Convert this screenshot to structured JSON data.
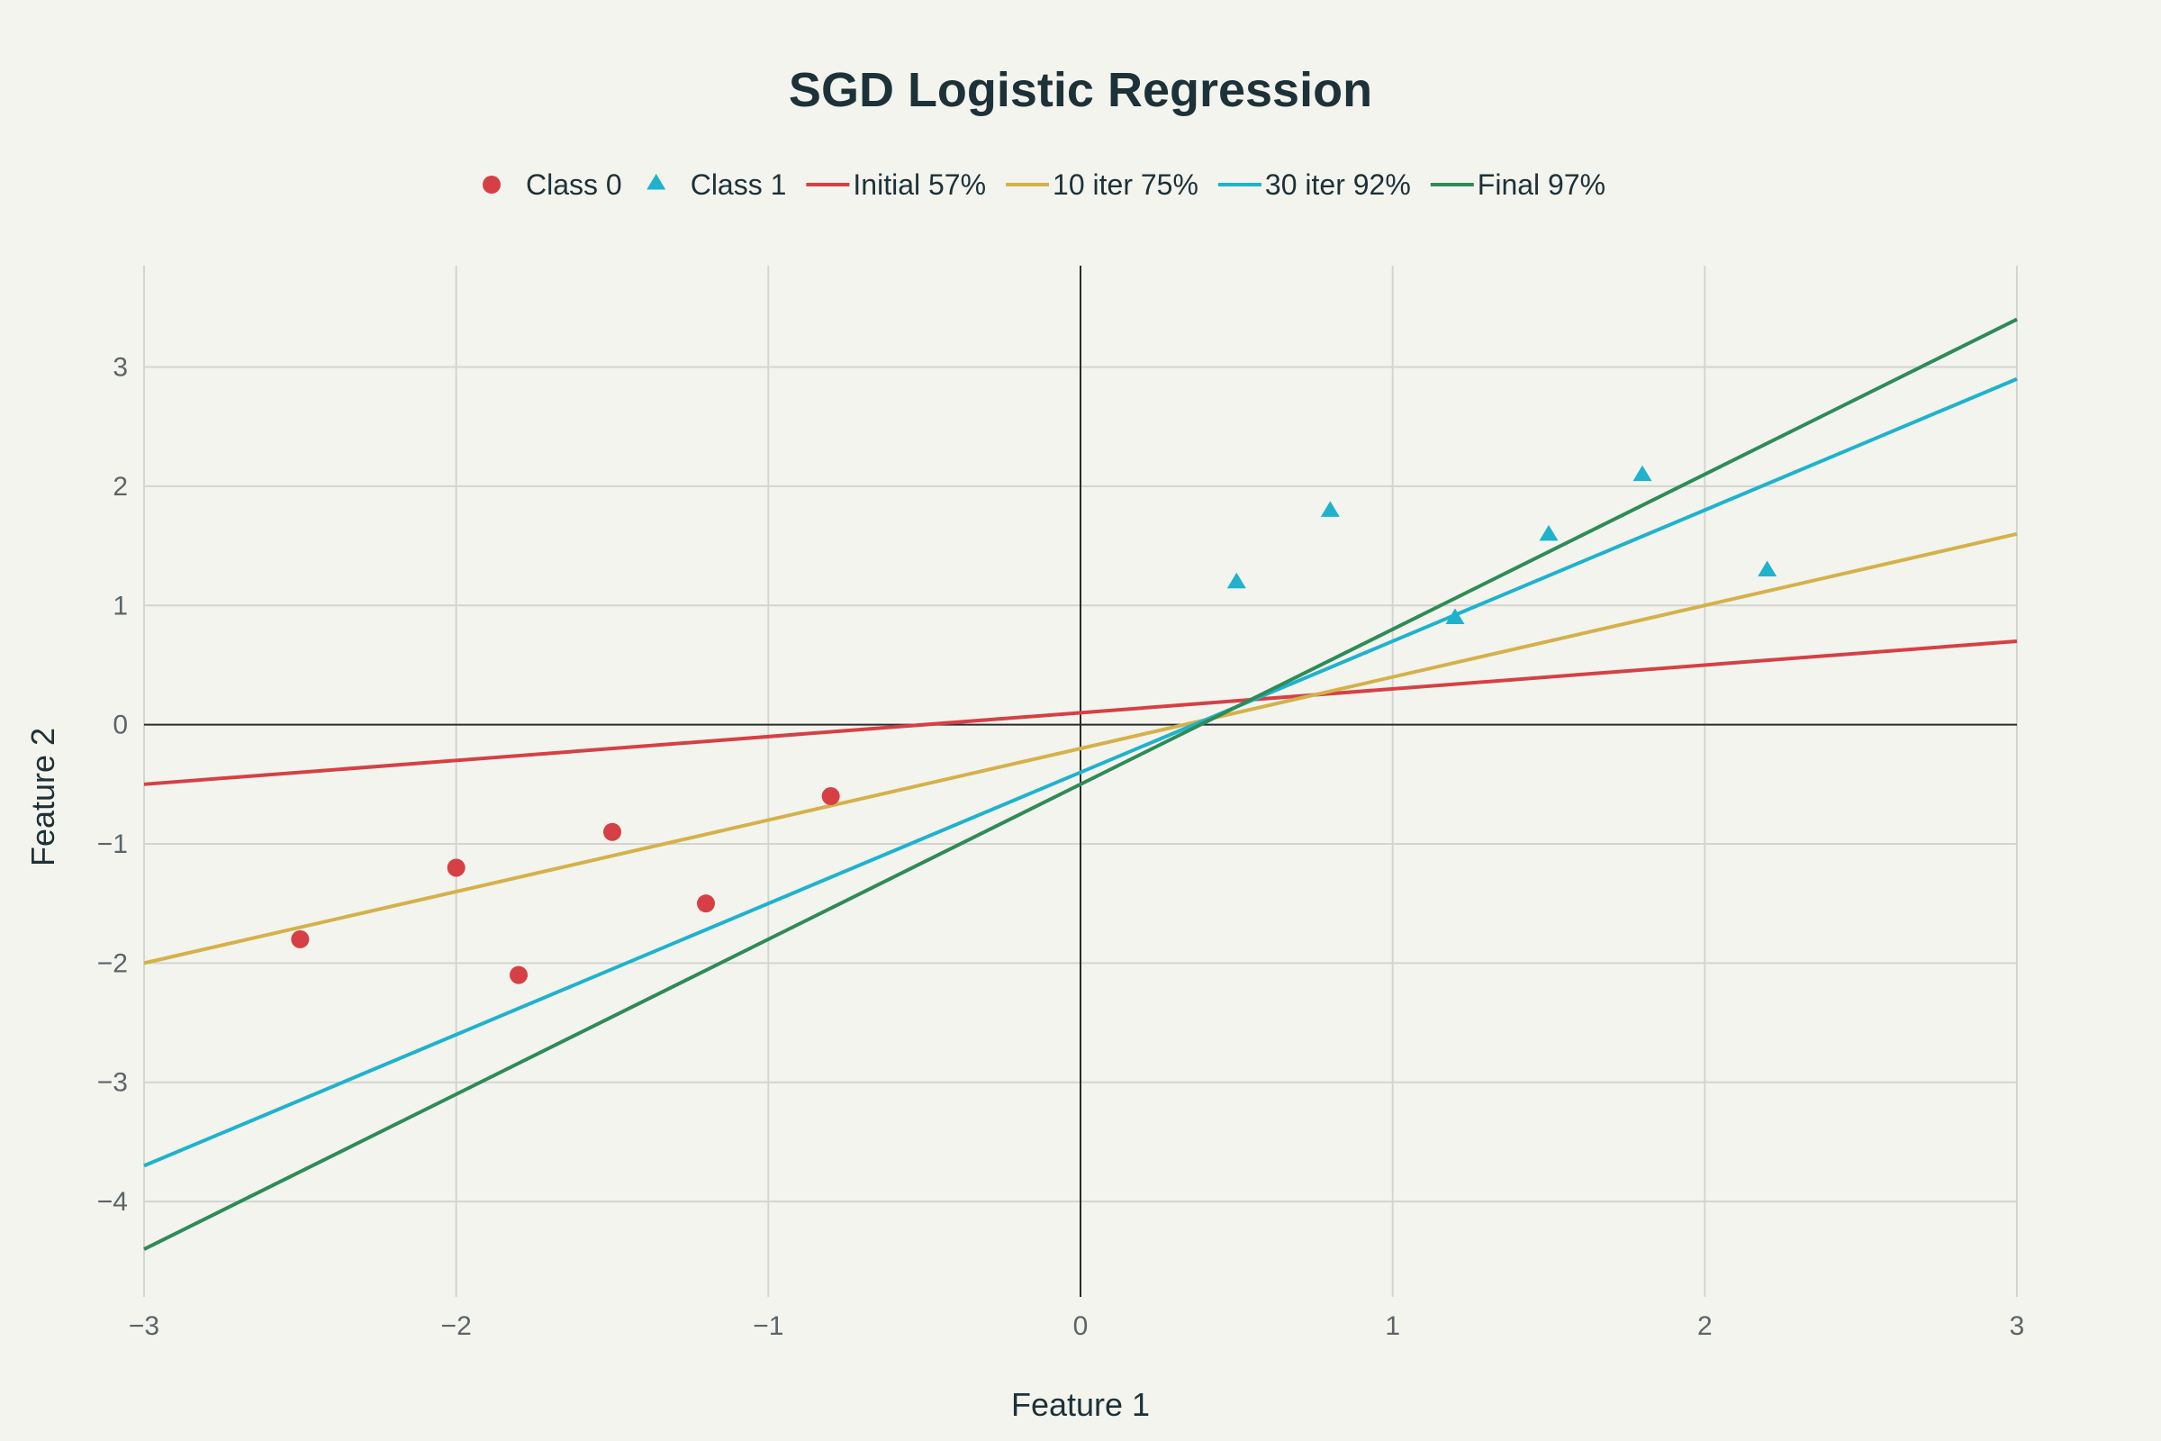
{
  "chart_data": {
    "type": "scatter",
    "title": "SGD Logistic Regression",
    "xlabel": "Feature 1",
    "ylabel": "Feature 2",
    "xlim": [
      -3,
      3
    ],
    "ylim": [
      -4.8,
      3.85
    ],
    "xticks": [
      -3,
      -2,
      -1,
      0,
      1,
      2,
      3
    ],
    "yticks": [
      -4,
      -3,
      -2,
      -1,
      0,
      1,
      2,
      3
    ],
    "xtick_labels": [
      "−3",
      "−2",
      "−1",
      "0",
      "1",
      "2",
      "3"
    ],
    "ytick_labels": [
      "−4",
      "−3",
      "−2",
      "−1",
      "0",
      "1",
      "2",
      "3"
    ],
    "grid": true,
    "legend_position": "top-center",
    "series": [
      {
        "name": "Class 0",
        "kind": "points",
        "marker": "circle",
        "color": "#d64045",
        "x": [
          -2.5,
          -2.0,
          -1.8,
          -1.5,
          -1.2,
          -0.8
        ],
        "y": [
          -1.8,
          -1.2,
          -2.1,
          -0.9,
          -1.5,
          -0.6
        ]
      },
      {
        "name": "Class 1",
        "kind": "points",
        "marker": "triangle",
        "color": "#1fb2cc",
        "x": [
          0.5,
          0.8,
          1.2,
          1.5,
          1.8,
          2.2
        ],
        "y": [
          1.2,
          1.8,
          0.9,
          1.6,
          2.1,
          1.3
        ]
      },
      {
        "name": "Initial 57%",
        "kind": "line",
        "color": "#d64045",
        "x": [
          -3,
          3
        ],
        "y": [
          -0.5,
          0.7
        ]
      },
      {
        "name": "10 iter 75%",
        "kind": "line",
        "color": "#d4b14a",
        "x": [
          -3,
          3
        ],
        "y": [
          -2.0,
          1.6
        ]
      },
      {
        "name": "30 iter 92%",
        "kind": "line",
        "color": "#1fb2cc",
        "x": [
          -3,
          3
        ],
        "y": [
          -3.7,
          2.9
        ]
      },
      {
        "name": "Final 97%",
        "kind": "line",
        "color": "#2e8b57",
        "x": [
          -3,
          3
        ],
        "y": [
          -4.4,
          3.4
        ]
      }
    ]
  }
}
